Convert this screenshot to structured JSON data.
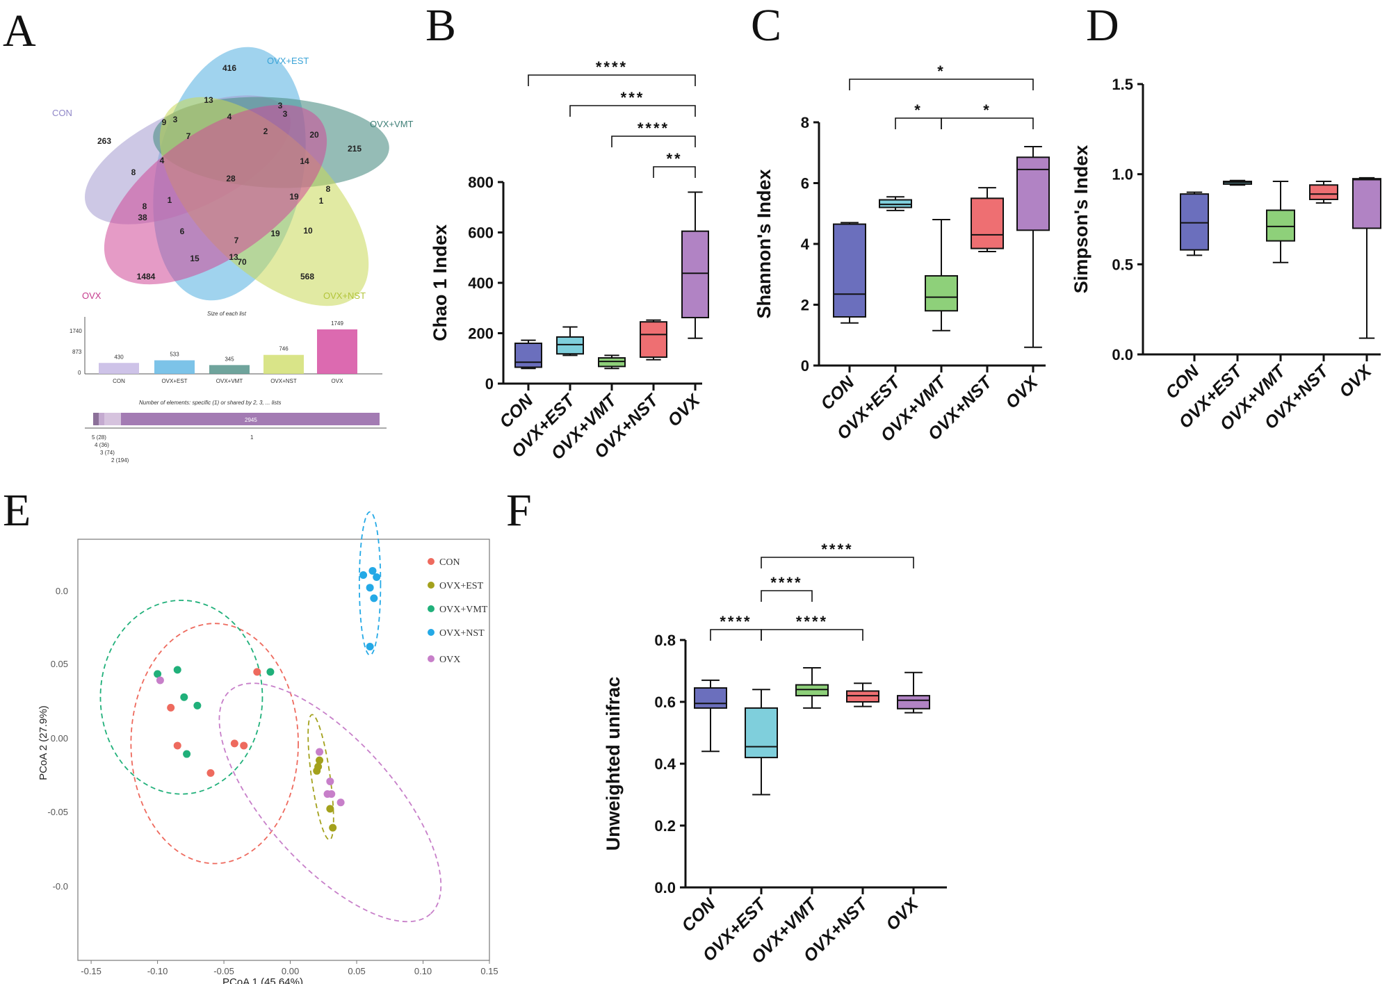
{
  "panels": {
    "a": "A",
    "b": "B",
    "c": "C",
    "d": "D",
    "e": "E",
    "f": "F"
  },
  "colors": {
    "con": "#6b6fbd",
    "ovx_est": "#7fcfdc",
    "ovx_vmt": "#8ed07a",
    "ovx_nst": "#ee6f72",
    "ovx": "#b183c4",
    "pcoa_con": "#ee6a5e",
    "pcoa_est": "#a3a11c",
    "pcoa_vmt": "#20b07a",
    "pcoa_nst": "#24a9e6",
    "pcoa_ovx": "#c77fc9"
  },
  "venn": {
    "set_labels": [
      "CON",
      "OVX+EST",
      "OVX+VMT",
      "OVX+NST",
      "OVX"
    ],
    "numbers": [
      "416",
      "13",
      "3",
      "3",
      "9",
      "3",
      "4",
      "2",
      "20",
      "263",
      "7",
      "215",
      "4",
      "14",
      "8",
      "28",
      "8",
      "1",
      "19",
      "1",
      "8",
      "38",
      "6",
      "7",
      "19",
      "10",
      "15",
      "13",
      "70",
      "1484",
      "568"
    ],
    "bar_title": "Size of each list",
    "bar_yticks": [
      "1740",
      "873",
      "0"
    ],
    "bar_categories": [
      "CON",
      "OVX+EST",
      "OVX+VMT",
      "OVX+NST",
      "OVX"
    ],
    "bar_values": [
      "430",
      "533",
      "345",
      "746",
      "1749"
    ],
    "shared_title": "Number of elements: specific (1) or shared by 2, 3, ... lists",
    "shared_total": "2945",
    "shared_one": "1",
    "shared_legend": [
      "5 (28)",
      "4 (36)",
      "3 (74)",
      "2 (194)"
    ]
  },
  "chart_data": [
    {
      "type": "box",
      "panel": "B",
      "ylabel": "Chao 1 Index",
      "ylim": [
        0,
        800
      ],
      "yticks": [
        "0",
        "200",
        "400",
        "600",
        "800"
      ],
      "categories": [
        "CON",
        "OVX+EST",
        "OVX+VMT",
        "OVX+NST",
        "OVX"
      ],
      "boxes": [
        {
          "min": 60,
          "q1": 65,
          "median": 85,
          "q3": 160,
          "max": 172
        },
        {
          "min": 112,
          "q1": 118,
          "median": 155,
          "q3": 185,
          "max": 225
        },
        {
          "min": 60,
          "q1": 68,
          "median": 88,
          "q3": 102,
          "max": 112
        },
        {
          "min": 95,
          "q1": 105,
          "median": 195,
          "q3": 245,
          "max": 252
        },
        {
          "min": 180,
          "q1": 262,
          "median": 438,
          "q3": 605,
          "max": 760
        }
      ],
      "significance": [
        {
          "from": 0,
          "to": 4,
          "label": "****"
        },
        {
          "from": 1,
          "to": 4,
          "label": "***"
        },
        {
          "from": 2,
          "to": 4,
          "label": "****"
        },
        {
          "from": 3,
          "to": 4,
          "label": "**"
        }
      ]
    },
    {
      "type": "box",
      "panel": "C",
      "ylabel": "Shannon's Index",
      "ylim": [
        0,
        8
      ],
      "yticks": [
        "0",
        "2",
        "4",
        "6",
        "8"
      ],
      "categories": [
        "CON",
        "OVX+EST",
        "OVX+VMT",
        "OVX+NST",
        "OVX"
      ],
      "boxes": [
        {
          "min": 1.4,
          "q1": 1.6,
          "median": 2.35,
          "q3": 4.65,
          "max": 4.7
        },
        {
          "min": 5.1,
          "q1": 5.2,
          "median": 5.3,
          "q3": 5.45,
          "max": 5.55
        },
        {
          "min": 1.15,
          "q1": 1.8,
          "median": 2.25,
          "q3": 2.95,
          "max": 4.8
        },
        {
          "min": 3.75,
          "q1": 3.85,
          "median": 4.3,
          "q3": 5.5,
          "max": 5.85
        },
        {
          "min": 0.6,
          "q1": 4.45,
          "median": 6.45,
          "q3": 6.85,
          "max": 7.2
        }
      ],
      "significance": [
        {
          "from": 0,
          "to": 4,
          "label": "*"
        },
        {
          "from": 1,
          "to": 2,
          "label": "*"
        },
        {
          "from": 2,
          "to": 4,
          "label": "*"
        }
      ]
    },
    {
      "type": "box",
      "panel": "D",
      "ylabel": "Simpson's Index",
      "ylim": [
        0,
        1.5
      ],
      "yticks": [
        "0.0",
        "0.5",
        "1.0",
        "1.5"
      ],
      "categories": [
        "CON",
        "OVX+EST",
        "OVX+VMT",
        "OVX+NST",
        "OVX"
      ],
      "boxes": [
        {
          "min": 0.55,
          "q1": 0.58,
          "median": 0.73,
          "q3": 0.89,
          "max": 0.9
        },
        {
          "min": 0.94,
          "q1": 0.945,
          "median": 0.955,
          "q3": 0.96,
          "max": 0.965
        },
        {
          "min": 0.51,
          "q1": 0.63,
          "median": 0.71,
          "q3": 0.8,
          "max": 0.96
        },
        {
          "min": 0.84,
          "q1": 0.86,
          "median": 0.89,
          "q3": 0.94,
          "max": 0.96
        },
        {
          "min": 0.09,
          "q1": 0.7,
          "median": 0.97,
          "q3": 0.975,
          "max": 0.98
        }
      ],
      "significance": []
    },
    {
      "type": "scatter",
      "panel": "E",
      "xlabel": "PCoA 1 (45.64%)",
      "ylabel": "PCoA 2 (27.9%)",
      "xlim": [
        -0.16,
        0.15
      ],
      "ylim": [
        -0.12,
        0.08
      ],
      "xticks": [
        "-0.15",
        "-0.10",
        "-0.05",
        "0.00",
        "0.05",
        "0.10",
        "0.15"
      ],
      "yticks": [
        "0.0",
        "0.05",
        "0.00",
        "-0.05",
        "-0.0"
      ],
      "legend": [
        "CON",
        "OVX+EST",
        "OVX+VMT",
        "OVX+NST",
        "OVX"
      ],
      "series": [
        {
          "name": "CON",
          "points": [
            [
              -0.09,
              0.0
            ],
            [
              -0.085,
              -0.018
            ],
            [
              -0.06,
              -0.031
            ],
            [
              -0.042,
              -0.017
            ],
            [
              -0.035,
              -0.018
            ],
            [
              -0.025,
              0.017
            ]
          ]
        },
        {
          "name": "OVX+EST",
          "points": [
            [
              0.022,
              -0.025
            ],
            [
              0.021,
              -0.028
            ],
            [
              0.02,
              -0.03
            ],
            [
              0.03,
              -0.048
            ],
            [
              0.032,
              -0.057
            ]
          ]
        },
        {
          "name": "OVX+VMT",
          "points": [
            [
              -0.1,
              0.016
            ],
            [
              -0.085,
              0.018
            ],
            [
              -0.08,
              0.005
            ],
            [
              -0.07,
              0.001
            ],
            [
              -0.078,
              -0.022
            ],
            [
              -0.015,
              0.017
            ]
          ]
        },
        {
          "name": "OVX+NST",
          "points": [
            [
              0.055,
              0.063
            ],
            [
              0.062,
              0.065
            ],
            [
              0.065,
              0.062
            ],
            [
              0.06,
              0.057
            ],
            [
              0.063,
              0.052
            ],
            [
              0.06,
              0.029
            ]
          ]
        },
        {
          "name": "OVX",
          "points": [
            [
              -0.098,
              0.013
            ],
            [
              0.022,
              -0.021
            ],
            [
              0.03,
              -0.035
            ],
            [
              0.028,
              -0.041
            ],
            [
              0.031,
              -0.041
            ],
            [
              0.038,
              -0.045
            ]
          ]
        }
      ]
    },
    {
      "type": "box",
      "panel": "F",
      "ylabel": "Unweighted unifrac",
      "ylim": [
        0,
        0.8
      ],
      "yticks": [
        "0.0",
        "0.2",
        "0.4",
        "0.6",
        "0.8"
      ],
      "categories": [
        "CON",
        "OVX+EST",
        "OVX+VMT",
        "OVX+NST",
        "OVX"
      ],
      "boxes": [
        {
          "min": 0.44,
          "q1": 0.58,
          "median": 0.595,
          "q3": 0.645,
          "max": 0.67
        },
        {
          "min": 0.3,
          "q1": 0.42,
          "median": 0.455,
          "q3": 0.58,
          "max": 0.64
        },
        {
          "min": 0.58,
          "q1": 0.62,
          "median": 0.64,
          "q3": 0.655,
          "max": 0.71
        },
        {
          "min": 0.585,
          "q1": 0.6,
          "median": 0.62,
          "q3": 0.635,
          "max": 0.66
        },
        {
          "min": 0.565,
          "q1": 0.578,
          "median": 0.605,
          "q3": 0.62,
          "max": 0.695
        }
      ],
      "significance": [
        {
          "from": 1,
          "to": 4,
          "label": "****"
        },
        {
          "from": 1,
          "to": 2,
          "label": "****"
        },
        {
          "from": 0,
          "to": 1,
          "label": "****"
        },
        {
          "from": 1,
          "to": 3,
          "label": "****"
        }
      ]
    }
  ]
}
